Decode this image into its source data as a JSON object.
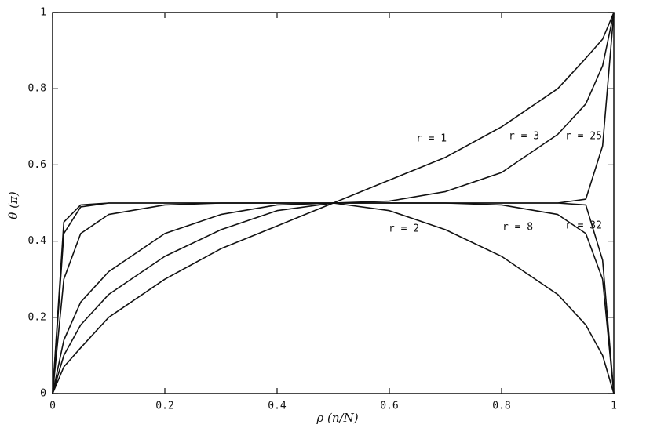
{
  "chart_data": {
    "type": "line",
    "xlabel": "ρ (n/N)",
    "ylabel": "θ (π)",
    "x": [
      0,
      0.02,
      0.05,
      0.1,
      0.2,
      0.3,
      0.4,
      0.5,
      0.6,
      0.7,
      0.8,
      0.9,
      0.95,
      0.98,
      1
    ],
    "series": [
      {
        "name": "r = 1",
        "color": "#111111",
        "values": [
          0,
          0.07,
          0.12,
          0.2,
          0.3,
          0.38,
          0.44,
          0.5,
          0.56,
          0.62,
          0.7,
          0.8,
          0.88,
          0.93,
          1
        ]
      },
      {
        "name": "r = 2",
        "color": "#111111",
        "values": [
          0,
          0.1,
          0.18,
          0.26,
          0.36,
          0.43,
          0.48,
          0.5,
          0.48,
          0.43,
          0.36,
          0.26,
          0.18,
          0.1,
          0
        ]
      },
      {
        "name": "r = 3",
        "color": "#111111",
        "values": [
          0,
          0.14,
          0.24,
          0.32,
          0.42,
          0.47,
          0.495,
          0.5,
          0.505,
          0.53,
          0.58,
          0.68,
          0.76,
          0.86,
          1
        ]
      },
      {
        "name": "r = 8",
        "color": "#111111",
        "values": [
          0,
          0.3,
          0.42,
          0.47,
          0.495,
          0.5,
          0.5,
          0.5,
          0.5,
          0.5,
          0.495,
          0.47,
          0.42,
          0.3,
          0
        ]
      },
      {
        "name": "r = 25",
        "color": "#111111",
        "values": [
          0,
          0.42,
          0.49,
          0.5,
          0.5,
          0.5,
          0.5,
          0.5,
          0.5,
          0.5,
          0.5,
          0.5,
          0.51,
          0.65,
          1
        ]
      },
      {
        "name": "r = 32",
        "color": "#111111",
        "values": [
          0,
          0.45,
          0.495,
          0.5,
          0.5,
          0.5,
          0.5,
          0.5,
          0.5,
          0.5,
          0.5,
          0.5,
          0.495,
          0.35,
          0
        ]
      }
    ],
    "xlim": [
      0,
      1
    ],
    "ylim": [
      0,
      1
    ],
    "xticks": [
      0,
      0.2,
      0.4,
      0.6,
      0.8,
      1
    ],
    "yticks": [
      0,
      0.2,
      0.4,
      0.6,
      0.8,
      1
    ],
    "grid": false
  }
}
